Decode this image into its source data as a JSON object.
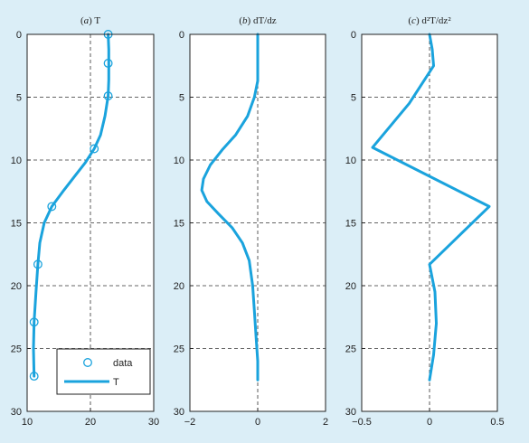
{
  "chart_data": [
    {
      "type": "line",
      "panel_letter": "a",
      "title_rest": " T",
      "x_label": "",
      "y_label": "",
      "xlim": [
        10,
        30
      ],
      "ylim": [
        0,
        30
      ],
      "y_inverted": true,
      "x_ticks": [
        "10",
        "20",
        "30"
      ],
      "y_ticks": [
        "0",
        "5",
        "10",
        "15",
        "20",
        "25",
        "30"
      ],
      "grid": "dashed",
      "series": [
        {
          "name": "data",
          "kind": "markers",
          "marker": "open-circle",
          "points": [
            [
              22.8,
              0
            ],
            [
              22.8,
              2.3
            ],
            [
              22.8,
              4.9
            ],
            [
              20.6,
              9.1
            ],
            [
              13.9,
              13.7
            ],
            [
              11.7,
              18.3
            ],
            [
              11.1,
              22.9
            ],
            [
              11.1,
              27.2
            ]
          ]
        },
        {
          "name": "T",
          "kind": "line",
          "points": [
            [
              22.8,
              0
            ],
            [
              22.9,
              1.2
            ],
            [
              22.9,
              2.3
            ],
            [
              22.9,
              3.6
            ],
            [
              22.8,
              4.9
            ],
            [
              22.3,
              6.5
            ],
            [
              21.6,
              8.0
            ],
            [
              20.6,
              9.1
            ],
            [
              19.2,
              10.2
            ],
            [
              17.5,
              11.3
            ],
            [
              15.8,
              12.4
            ],
            [
              13.9,
              13.7
            ],
            [
              12.7,
              15.0
            ],
            [
              12.0,
              16.6
            ],
            [
              11.7,
              18.3
            ],
            [
              11.4,
              20.5
            ],
            [
              11.1,
              22.9
            ],
            [
              11.0,
              25.0
            ],
            [
              11.1,
              27.2
            ]
          ]
        }
      ],
      "legend": {
        "position": "bottom-right",
        "entries": [
          "data",
          "T"
        ]
      }
    },
    {
      "type": "line",
      "panel_letter": "b",
      "title_rest": " dT/dz",
      "xlim": [
        -2,
        2
      ],
      "ylim": [
        0,
        30
      ],
      "y_inverted": true,
      "x_ticks": [
        "−2",
        "0",
        "2"
      ],
      "y_ticks": [
        "0",
        "5",
        "10",
        "15",
        "20",
        "25",
        "30"
      ],
      "grid": "dashed",
      "series": [
        {
          "name": "dT/dz",
          "kind": "line",
          "points": [
            [
              0.0,
              0
            ],
            [
              0.0,
              2.0
            ],
            [
              0.0,
              3.7
            ],
            [
              -0.1,
              5.0
            ],
            [
              -0.3,
              6.5
            ],
            [
              -0.65,
              8.0
            ],
            [
              -1.05,
              9.2
            ],
            [
              -1.4,
              10.4
            ],
            [
              -1.6,
              11.5
            ],
            [
              -1.65,
              12.4
            ],
            [
              -1.5,
              13.3
            ],
            [
              -1.15,
              14.3
            ],
            [
              -0.75,
              15.4
            ],
            [
              -0.45,
              16.6
            ],
            [
              -0.25,
              18.0
            ],
            [
              -0.15,
              20.0
            ],
            [
              -0.1,
              22.0
            ],
            [
              -0.05,
              24.0
            ],
            [
              0.0,
              26.0
            ],
            [
              0.0,
              27.5
            ]
          ]
        }
      ]
    },
    {
      "type": "line",
      "panel_letter": "c",
      "title_rest": " d²T/dz²",
      "xlim": [
        -0.5,
        0.5
      ],
      "ylim": [
        0,
        30
      ],
      "y_inverted": true,
      "x_ticks": [
        "−0.5",
        "0",
        "0.5"
      ],
      "y_ticks": [
        "0",
        "5",
        "10",
        "15",
        "20",
        "25",
        "30"
      ],
      "grid": "dashed",
      "series": [
        {
          "name": "d2T/dz2",
          "kind": "line",
          "points": [
            [
              0.0,
              0
            ],
            [
              0.02,
              1.2
            ],
            [
              0.03,
              2.5
            ],
            [
              -0.15,
              5.5
            ],
            [
              -0.42,
              9.0
            ],
            [
              0.44,
              13.7
            ],
            [
              0.0,
              18.3
            ],
            [
              0.04,
              20.5
            ],
            [
              0.05,
              23.0
            ],
            [
              0.03,
              25.5
            ],
            [
              0.0,
              27.5
            ]
          ]
        }
      ]
    }
  ],
  "colors": {
    "background": "#dbeef7",
    "plot_area": "#ffffff",
    "series": "#1aa3dd",
    "grid": "#333333",
    "axis": "#222222"
  }
}
